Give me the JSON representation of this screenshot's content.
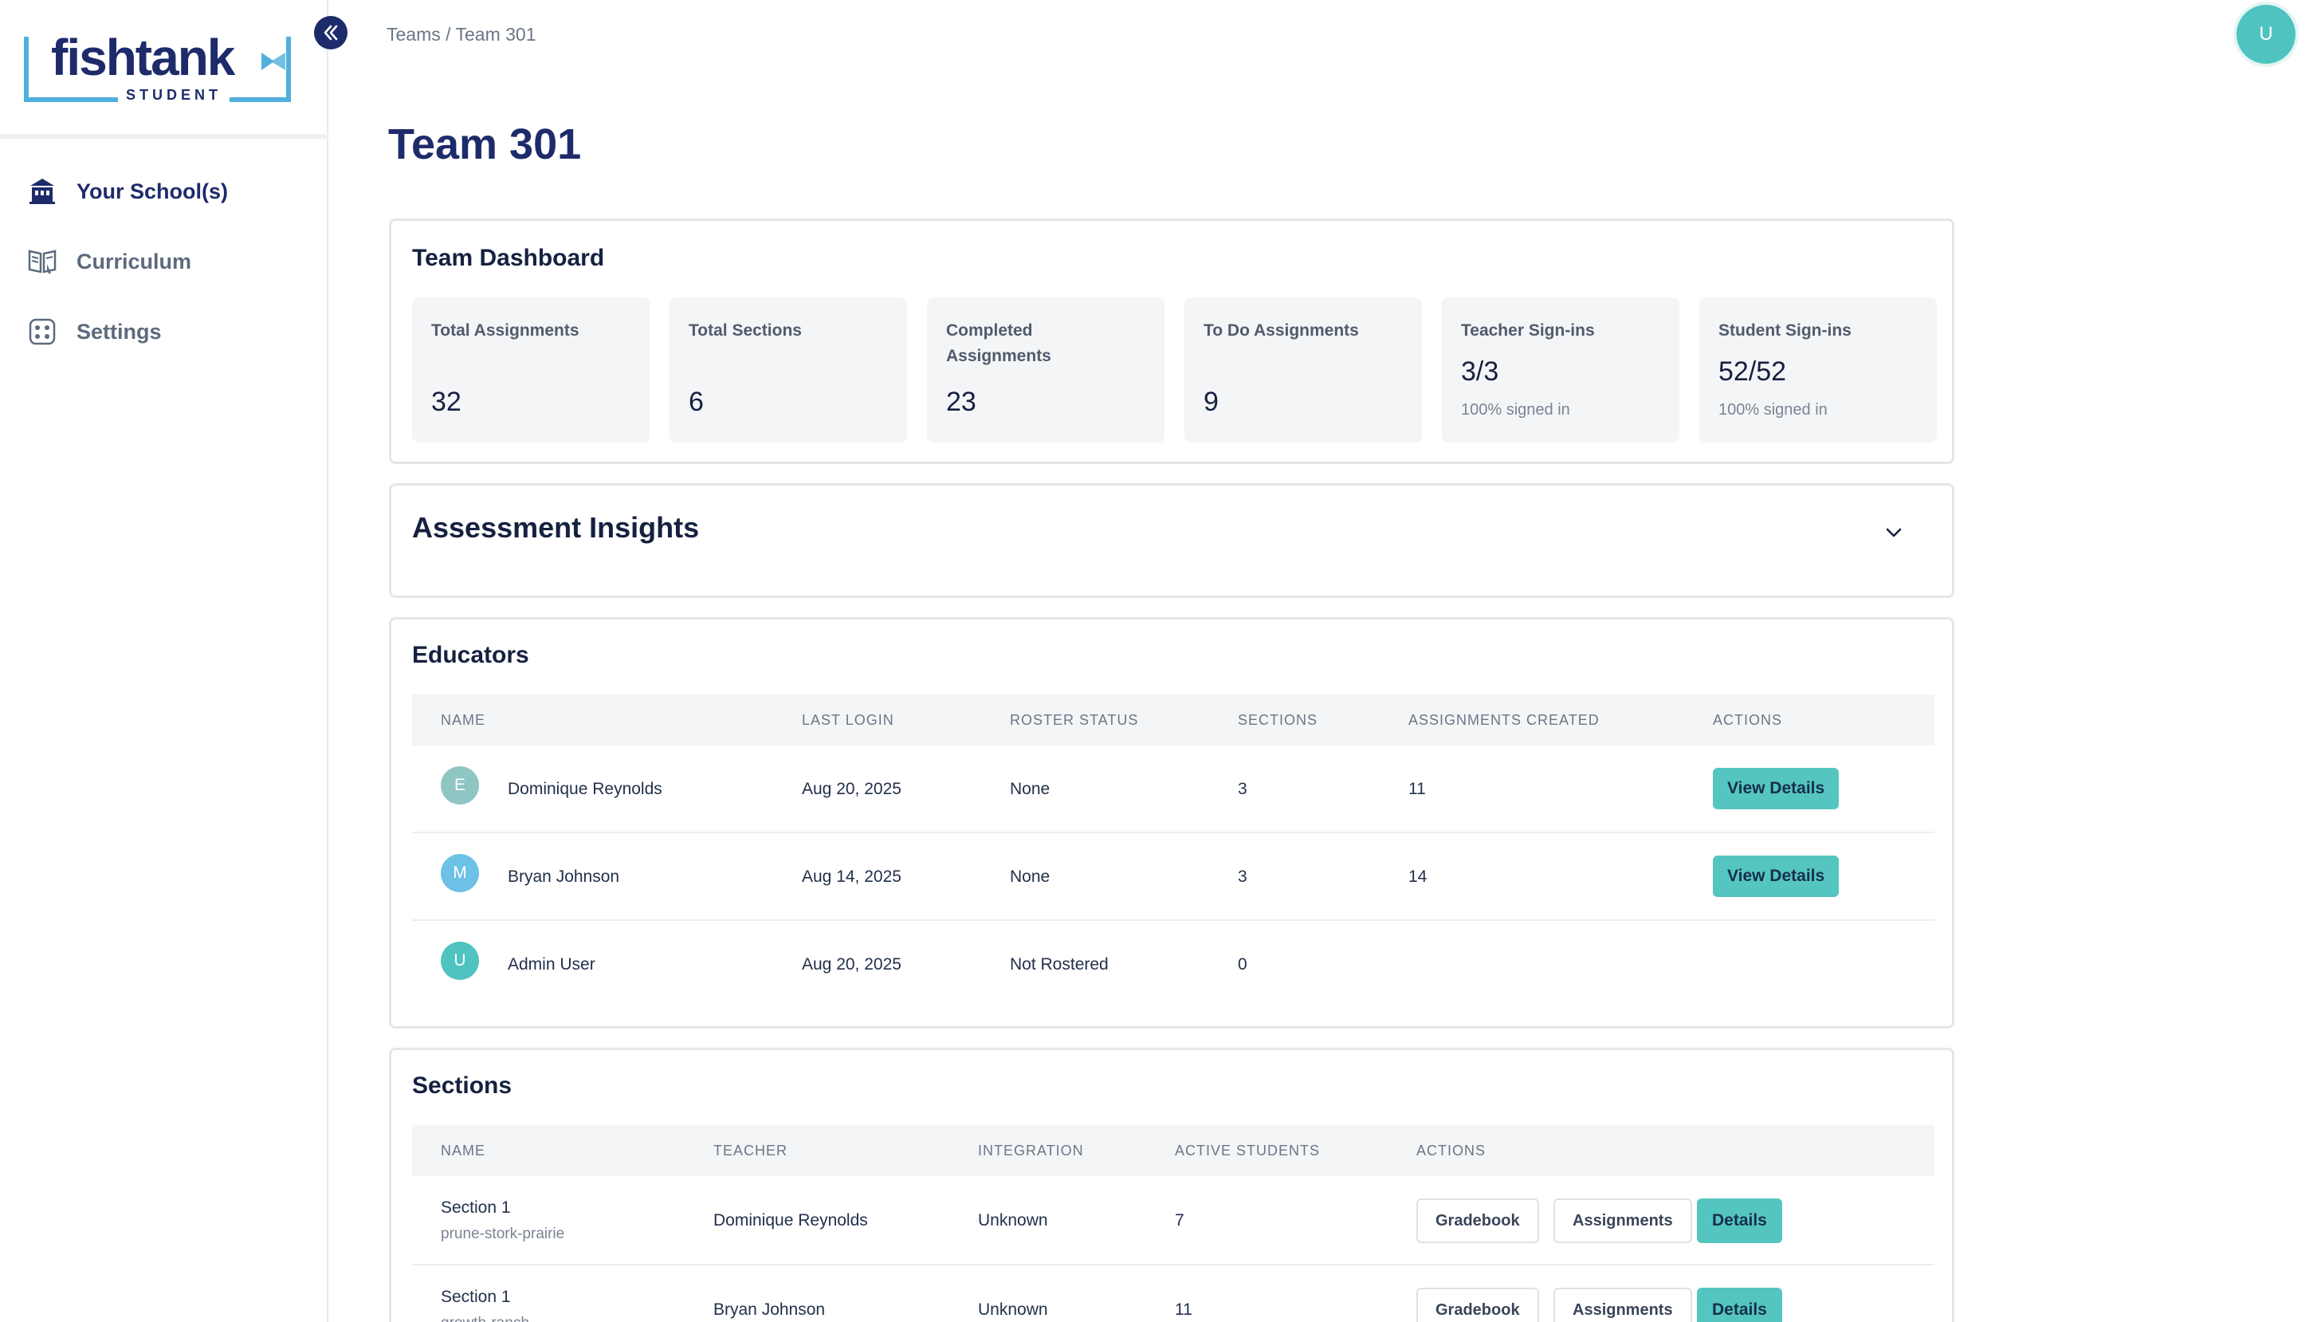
{
  "sidebar": {
    "logo_text": "fishtank",
    "logo_sub": "STUDENT",
    "items": [
      {
        "label": "Your School(s)",
        "icon": "school-icon",
        "active": true
      },
      {
        "label": "Curriculum",
        "icon": "book-icon",
        "active": false
      },
      {
        "label": "Settings",
        "icon": "settings-icon",
        "active": false
      }
    ]
  },
  "header": {
    "breadcrumb": "Teams / Team 301",
    "avatar_initial": "U"
  },
  "page": {
    "title": "Team 301"
  },
  "dashboard": {
    "title": "Team Dashboard",
    "stats": [
      {
        "label": "Total Assignments",
        "value": "32",
        "sub": ""
      },
      {
        "label": "Total Sections",
        "value": "6",
        "sub": ""
      },
      {
        "label": "Completed Assignments",
        "value": "23",
        "sub": ""
      },
      {
        "label": "To Do Assignments",
        "value": "9",
        "sub": ""
      },
      {
        "label": "Teacher Sign-ins",
        "value": "3/3",
        "sub": "100% signed in"
      },
      {
        "label": "Student Sign-ins",
        "value": "52/52",
        "sub": "100% signed in"
      }
    ]
  },
  "insights": {
    "title": "Assessment Insights"
  },
  "educators": {
    "title": "Educators",
    "columns": [
      "NAME",
      "LAST LOGIN",
      "ROSTER STATUS",
      "SECTIONS",
      "ASSIGNMENTS CREATED",
      "ACTIONS"
    ],
    "rows": [
      {
        "initial": "E",
        "avatar_color": "#8fc5c2",
        "name": "Dominique Reynolds",
        "last_login": "Aug 20, 2025",
        "roster_status": "None",
        "sections": "3",
        "assignments_created": "11",
        "action": "View Details"
      },
      {
        "initial": "M",
        "avatar_color": "#6dc1e6",
        "name": "Bryan Johnson",
        "last_login": "Aug 14, 2025",
        "roster_status": "None",
        "sections": "3",
        "assignments_created": "14",
        "action": "View Details"
      },
      {
        "initial": "U",
        "avatar_color": "#4fc3bf",
        "name": "Admin User",
        "last_login": "Aug 20, 2025",
        "roster_status": "Not Rostered",
        "sections": "0",
        "assignments_created": "",
        "action": ""
      }
    ]
  },
  "sections": {
    "title": "Sections",
    "columns": [
      "NAME",
      "TEACHER",
      "INTEGRATION",
      "ACTIVE STUDENTS",
      "ACTIONS"
    ],
    "rows": [
      {
        "name": "Section 1",
        "code": "prune-stork-prairie",
        "teacher": "Dominique Reynolds",
        "integration": "Unknown",
        "active_students": "7",
        "btn_gradebook": "Gradebook",
        "btn_assignments": "Assignments",
        "btn_details": "Details"
      },
      {
        "name": "Section 1",
        "code": "growth-ranch",
        "teacher": "Bryan Johnson",
        "integration": "Unknown",
        "active_students": "11",
        "btn_gradebook": "Gradebook",
        "btn_assignments": "Assignments",
        "btn_details": "Details"
      }
    ]
  },
  "colors": {
    "brand_navy": "#1e2b6b",
    "accent_teal": "#55c5c0",
    "logo_blue": "#4fb0dd"
  }
}
